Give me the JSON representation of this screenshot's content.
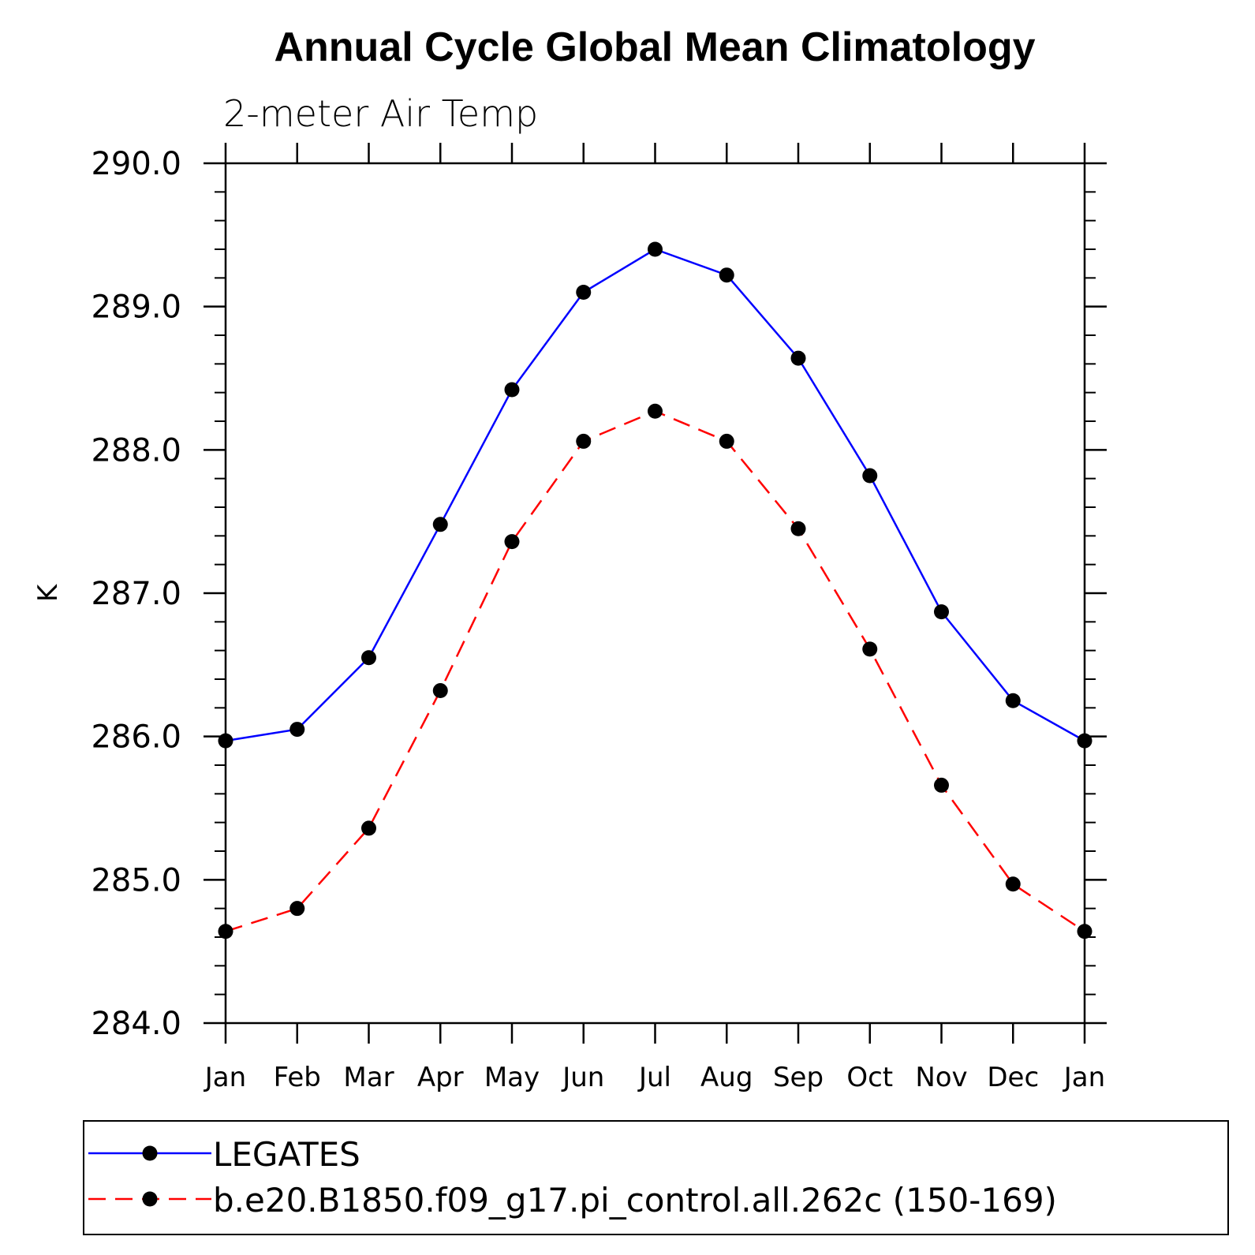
{
  "chart_data": {
    "type": "line",
    "title": "Annual Cycle Global Mean Climatology",
    "subtitle": "2-meter Air Temp",
    "xlabel": "",
    "ylabel": "K",
    "categories": [
      "Jan",
      "Feb",
      "Mar",
      "Apr",
      "May",
      "Jun",
      "Jul",
      "Aug",
      "Sep",
      "Oct",
      "Nov",
      "Dec",
      "Jan"
    ],
    "yticks": [
      "284.0",
      "285.0",
      "286.0",
      "287.0",
      "288.0",
      "289.0",
      "290.0"
    ],
    "ylim": [
      284.0,
      290.0
    ],
    "series": [
      {
        "name": "LEGATES",
        "color": "#0000ff",
        "style": "solid",
        "marker": "filled-circle",
        "values": [
          285.97,
          286.05,
          286.55,
          287.48,
          288.42,
          289.1,
          289.4,
          289.22,
          288.64,
          287.82,
          286.87,
          286.25,
          285.97
        ]
      },
      {
        "name": "b.e20.B1850.f09_g17.pi_control.all.262c (150-169)",
        "color": "#ff0000",
        "style": "dashed",
        "marker": "filled-circle",
        "values": [
          284.64,
          284.8,
          285.36,
          286.32,
          287.36,
          288.06,
          288.27,
          288.06,
          287.45,
          286.61,
          285.66,
          284.97,
          284.64
        ]
      }
    ],
    "grid": false,
    "legend_position": "bottom"
  }
}
